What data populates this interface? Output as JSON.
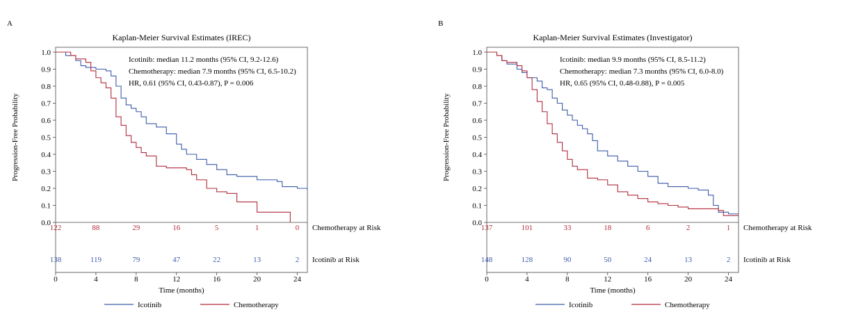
{
  "chart_data": [
    {
      "type": "line",
      "panel_letter": "A",
      "title": "Kaplan-Meier Survival Estimates (IREC)",
      "xlabel": "Time (months)",
      "ylabel": "Progression-Free Probability",
      "xlim": [
        0,
        25
      ],
      "ylim": [
        0,
        1
      ],
      "xticks": [
        "0",
        "4",
        "8",
        "12",
        "16",
        "20",
        "24"
      ],
      "yticks": [
        "0.0",
        "0.1",
        "0.2",
        "0.3",
        "0.4",
        "0.5",
        "0.6",
        "0.7",
        "0.8",
        "0.9",
        "1.0"
      ],
      "annotations": [
        "Icotinib: median 11.2 months (95% CI, 9.2-12.6)",
        "Chemotherapy: median 7.9 months (95% CI, 6.5-10.2)",
        "HR, 0.61 (95% CI, 0.43-0.87), P = 0.006"
      ],
      "legend": {
        "position": "bottom",
        "entries": [
          "Icotinib",
          "Chemotherapy"
        ]
      },
      "series": [
        {
          "name": "Icotinib",
          "color": "#3a5aa8",
          "x": [
            0,
            1,
            2,
            2.5,
            3,
            4,
            5,
            5.5,
            6,
            6.5,
            7,
            7.5,
            8,
            8.5,
            9,
            10,
            11,
            12,
            12.5,
            13,
            14,
            15,
            16,
            17,
            18,
            20,
            22,
            22.5,
            24,
            25
          ],
          "y": [
            1.0,
            0.98,
            0.95,
            0.92,
            0.91,
            0.9,
            0.89,
            0.86,
            0.8,
            0.73,
            0.69,
            0.67,
            0.65,
            0.62,
            0.58,
            0.56,
            0.52,
            0.46,
            0.43,
            0.4,
            0.37,
            0.34,
            0.31,
            0.28,
            0.27,
            0.25,
            0.24,
            0.21,
            0.2,
            0.19
          ]
        },
        {
          "name": "Chemotherapy",
          "color": "#b02a3a",
          "x": [
            0,
            1.5,
            2,
            3,
            3.5,
            4,
            4.5,
            5,
            5.5,
            6,
            6.5,
            7,
            7.5,
            8,
            8.5,
            9,
            10,
            11,
            12,
            13,
            13.5,
            14,
            15,
            16,
            17,
            18,
            19,
            20,
            21,
            22,
            23,
            23.3
          ],
          "y": [
            1.0,
            0.98,
            0.96,
            0.94,
            0.89,
            0.85,
            0.82,
            0.79,
            0.73,
            0.62,
            0.57,
            0.51,
            0.47,
            0.44,
            0.41,
            0.39,
            0.33,
            0.32,
            0.32,
            0.31,
            0.28,
            0.25,
            0.2,
            0.18,
            0.17,
            0.12,
            0.12,
            0.06,
            0.06,
            0.06,
            0.06,
            0.0
          ]
        }
      ],
      "at_risk": [
        {
          "label": "Chemotherapy at Risk",
          "color": "#b02a3a",
          "values": [
            "122",
            "88",
            "29",
            "16",
            "5",
            "1",
            "0"
          ]
        },
        {
          "label": "Icotinib at Risk",
          "color": "#3a5aa8",
          "values": [
            "138",
            "119",
            "79",
            "47",
            "22",
            "13",
            "2"
          ]
        }
      ]
    },
    {
      "type": "line",
      "panel_letter": "B",
      "title": "Kaplan-Meier Survival Estimates (Investigator)",
      "xlabel": "Time (months)",
      "ylabel": "Progression-Free Probability",
      "xlim": [
        0,
        25
      ],
      "ylim": [
        0,
        1
      ],
      "xticks": [
        "0",
        "4",
        "8",
        "12",
        "16",
        "20",
        "24"
      ],
      "yticks": [
        "0.0",
        "0.1",
        "0.2",
        "0.3",
        "0.4",
        "0.5",
        "0.6",
        "0.7",
        "0.8",
        "0.9",
        "1.0"
      ],
      "annotations": [
        "Icotinib: median 9.9 months (95% CI, 8.5-11.2)",
        "Chemotherapy: median 7.3 months (95% CI, 6.0-8.0)",
        "HR, 0.65 (95% CI, 0.48-0.88), P = 0.005"
      ],
      "legend": {
        "position": "bottom",
        "entries": [
          "Icotinib",
          "Chemotherapy"
        ]
      },
      "series": [
        {
          "name": "Icotinib",
          "color": "#3a5aa8",
          "x": [
            0,
            1,
            1.5,
            2,
            3,
            3.5,
            4,
            5,
            5.5,
            6,
            6.5,
            7,
            7.5,
            8,
            8.5,
            9,
            9.5,
            10,
            10.5,
            11,
            12,
            13,
            14,
            15,
            16,
            17,
            18,
            20,
            21,
            22,
            22.5,
            23,
            24,
            25
          ],
          "y": [
            1.0,
            0.98,
            0.95,
            0.93,
            0.9,
            0.88,
            0.85,
            0.83,
            0.79,
            0.78,
            0.73,
            0.7,
            0.66,
            0.63,
            0.6,
            0.57,
            0.55,
            0.52,
            0.48,
            0.42,
            0.39,
            0.36,
            0.33,
            0.3,
            0.27,
            0.23,
            0.21,
            0.2,
            0.19,
            0.16,
            0.1,
            0.06,
            0.05,
            0.05
          ]
        },
        {
          "name": "Chemotherapy",
          "color": "#b02a3a",
          "x": [
            0,
            1,
            1.5,
            2,
            3,
            3.5,
            4,
            4.5,
            5,
            5.5,
            6,
            6.5,
            7,
            7.5,
            8,
            8.5,
            9,
            10,
            11,
            12,
            13,
            14,
            15,
            16,
            17,
            18,
            19,
            20,
            21,
            22,
            23,
            23.5,
            24,
            25
          ],
          "y": [
            1.0,
            0.98,
            0.95,
            0.94,
            0.92,
            0.89,
            0.85,
            0.78,
            0.71,
            0.65,
            0.58,
            0.52,
            0.47,
            0.42,
            0.37,
            0.33,
            0.31,
            0.26,
            0.25,
            0.22,
            0.18,
            0.16,
            0.14,
            0.12,
            0.11,
            0.1,
            0.09,
            0.08,
            0.08,
            0.08,
            0.07,
            0.04,
            0.04,
            0.04
          ]
        }
      ],
      "at_risk": [
        {
          "label": "Chemotherapy at Risk",
          "color": "#b02a3a",
          "values": [
            "137",
            "101",
            "33",
            "18",
            "6",
            "2",
            "1"
          ]
        },
        {
          "label": "Icotinib at Risk",
          "color": "#3a5aa8",
          "values": [
            "148",
            "128",
            "90",
            "50",
            "24",
            "13",
            "2"
          ]
        }
      ]
    }
  ]
}
